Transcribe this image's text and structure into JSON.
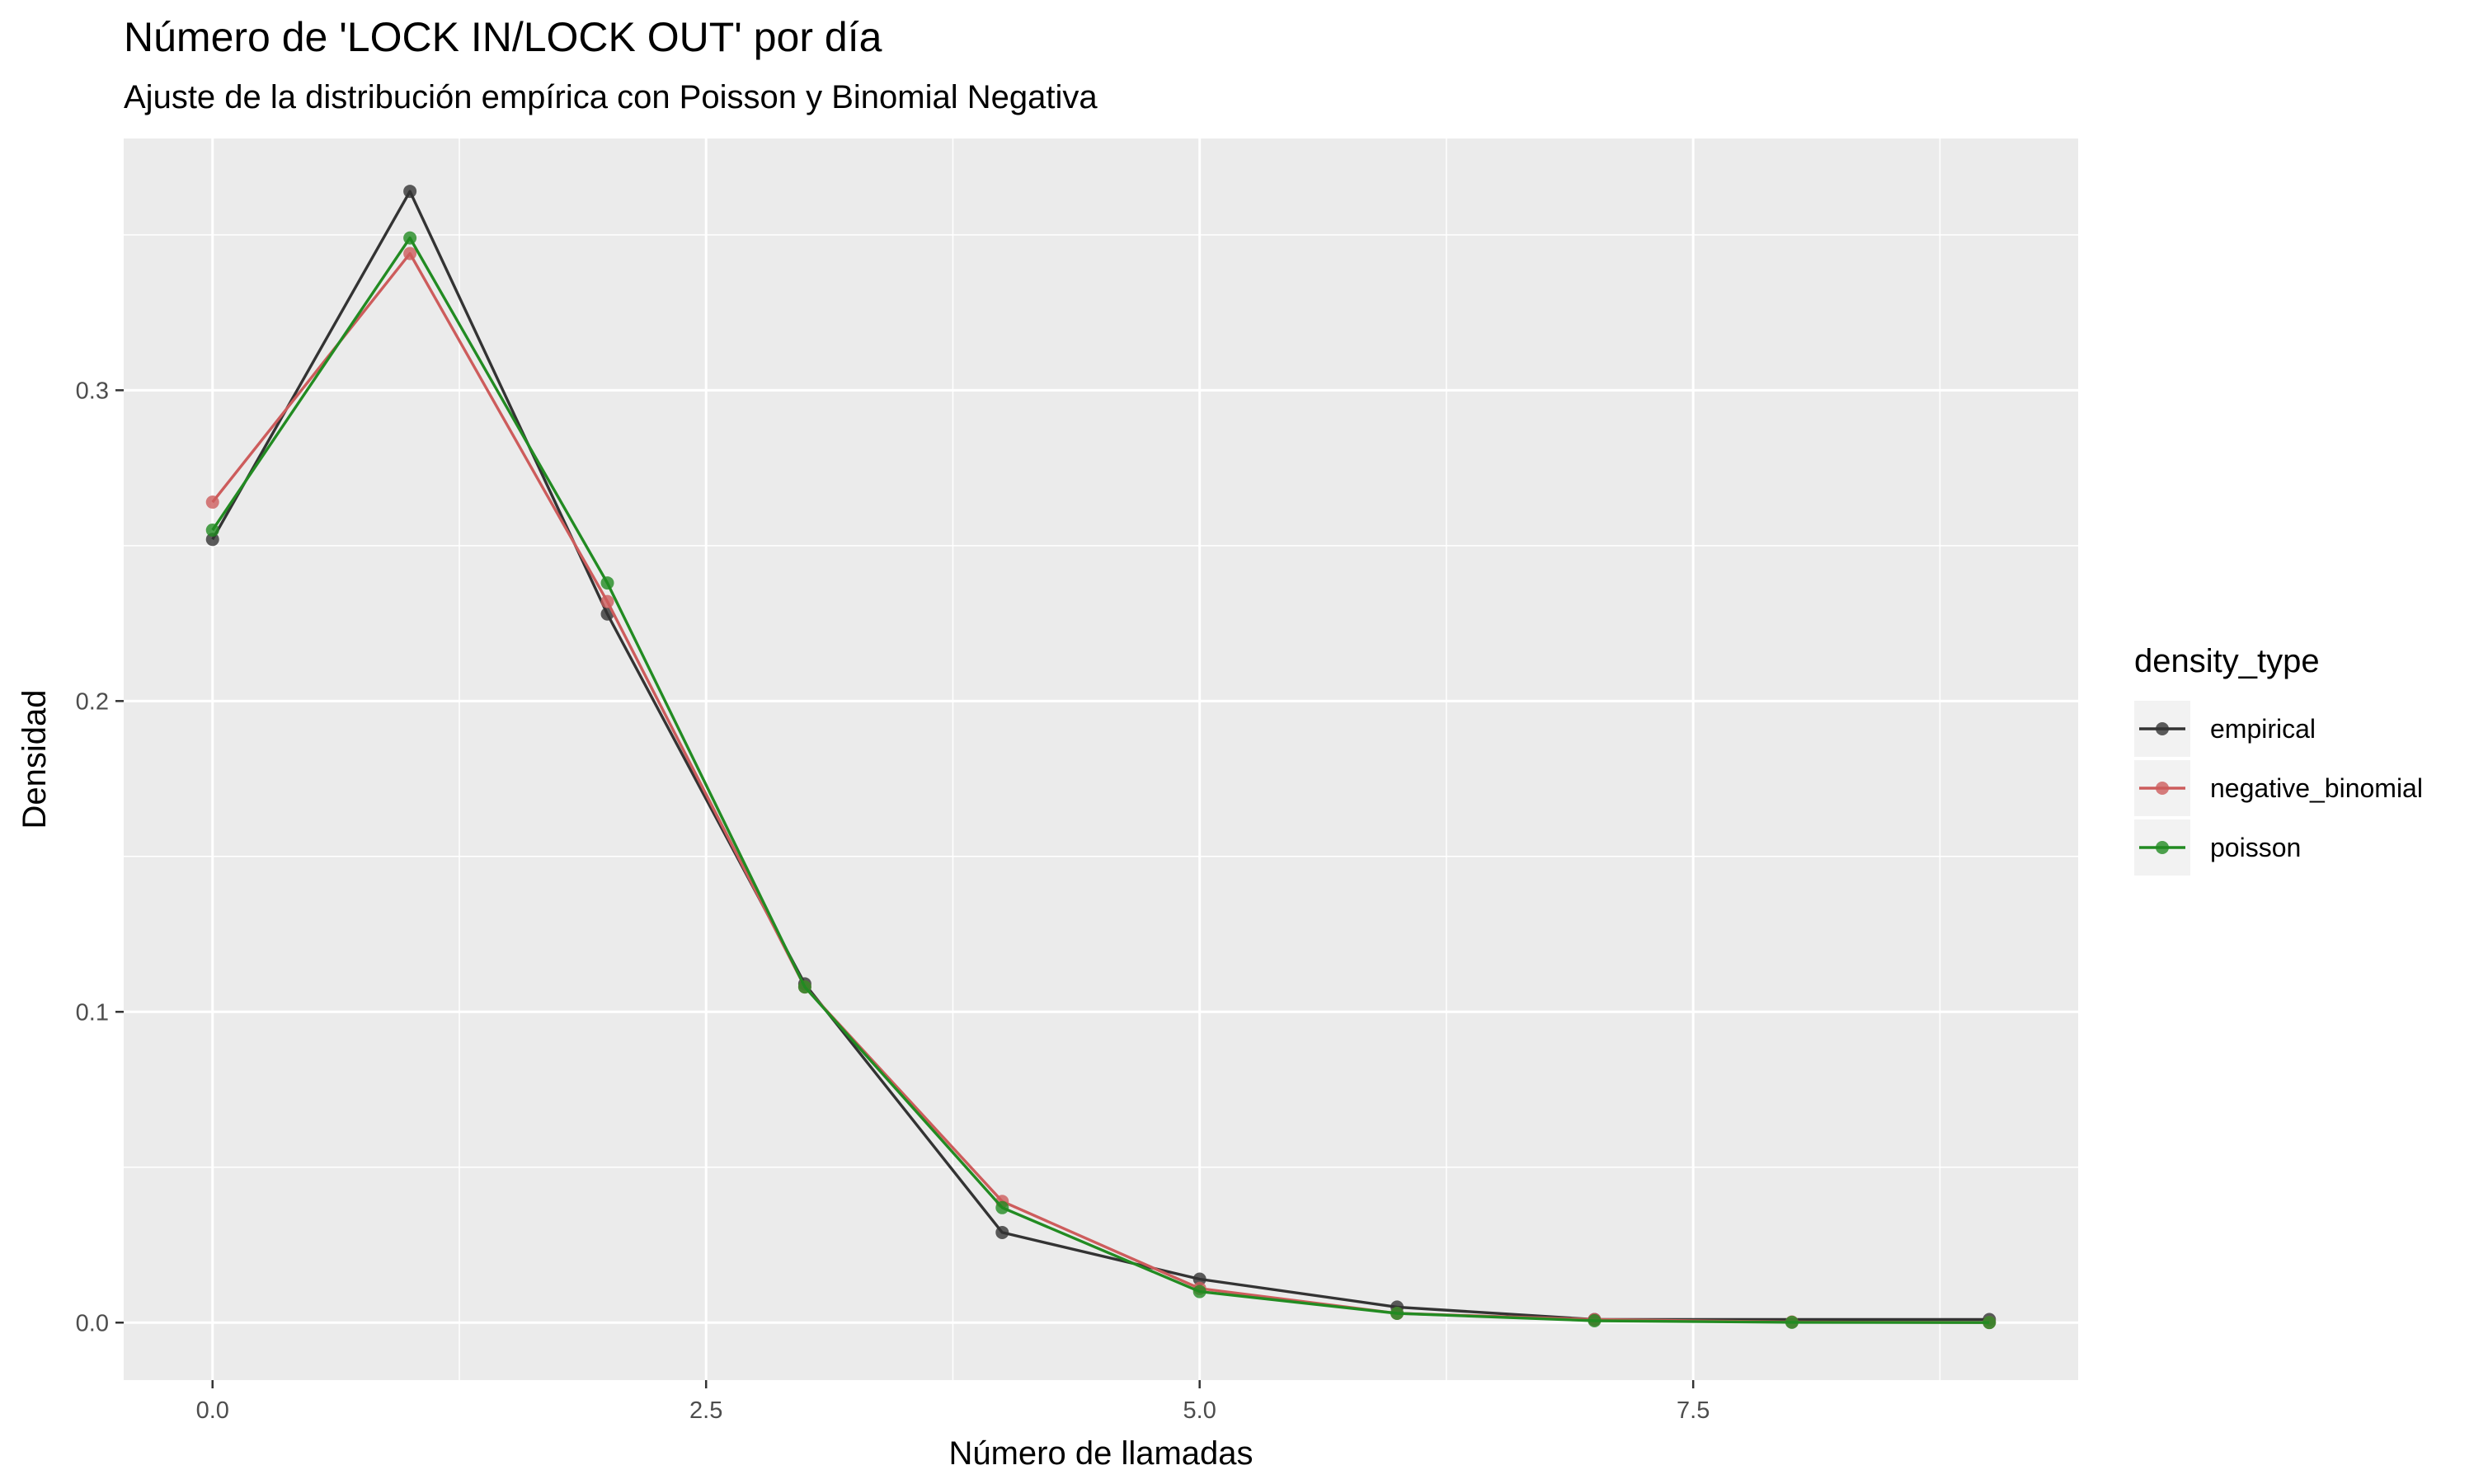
{
  "chart_data": {
    "type": "line",
    "title": "Número de 'LOCK IN/LOCK OUT' por día",
    "subtitle": "Ajuste de la distribución empírica con Poisson y Binomial Negativa",
    "xlabel": "Número de llamadas",
    "ylabel": "Densidad",
    "xlim": [
      -0.45,
      9.45
    ],
    "ylim": [
      -0.0185,
      0.381
    ],
    "x_ticks": [
      0.0,
      2.5,
      5.0,
      7.5
    ],
    "x_tick_labels": [
      "0.0",
      "2.5",
      "5.0",
      "7.5"
    ],
    "y_ticks": [
      0.0,
      0.1,
      0.2,
      0.3
    ],
    "y_tick_labels": [
      "0.0",
      "0.1",
      "0.2",
      "0.3"
    ],
    "grid": true,
    "legend": {
      "title": "density_type",
      "position": "right"
    },
    "series": [
      {
        "name": "empirical",
        "color": "#333333",
        "x": [
          0,
          1,
          2,
          3,
          4,
          5,
          6,
          7,
          9
        ],
        "y": [
          0.252,
          0.364,
          0.228,
          0.109,
          0.029,
          0.014,
          0.005,
          0.001,
          0.001
        ]
      },
      {
        "name": "negative_binomial",
        "color": "#cd5c5c",
        "x": [
          0,
          1,
          2,
          3,
          4,
          5,
          6,
          7,
          8,
          9
        ],
        "y": [
          0.264,
          0.344,
          0.232,
          0.108,
          0.039,
          0.011,
          0.003,
          0.001,
          0.0002,
          5e-05
        ]
      },
      {
        "name": "poisson",
        "color": "#228b22",
        "x": [
          0,
          1,
          2,
          3,
          4,
          5,
          6,
          7,
          8,
          9
        ],
        "y": [
          0.255,
          0.349,
          0.238,
          0.108,
          0.037,
          0.01,
          0.003,
          0.0006,
          0.0001,
          2e-05
        ]
      }
    ]
  }
}
